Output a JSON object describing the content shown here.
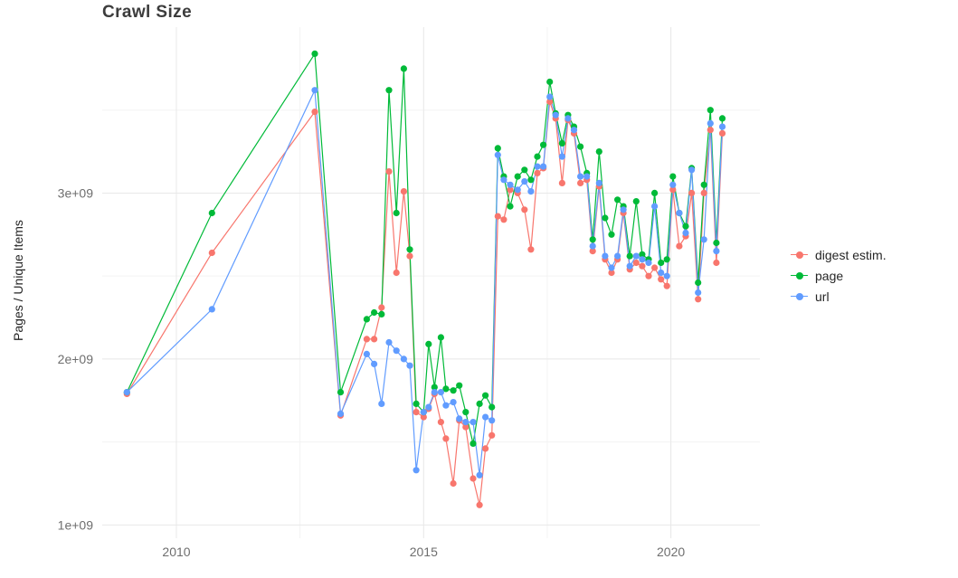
{
  "chart_data": {
    "type": "line",
    "title": "Crawl Size",
    "xlabel": "",
    "ylabel": "Pages / Unique Items",
    "unit": "values in billions (1e9) of pages / unique items",
    "x_range": [
      2008.5,
      2021.8
    ],
    "y_range": [
      0.92,
      4.0
    ],
    "grid": true,
    "legend_position": "right",
    "x_ticks": [
      {
        "value": 2010,
        "label": "2010"
      },
      {
        "value": 2015,
        "label": "2015"
      },
      {
        "value": 2020,
        "label": "2020"
      }
    ],
    "y_ticks": [
      {
        "value": 1,
        "label": "1e+09"
      },
      {
        "value": 2,
        "label": "2e+09"
      },
      {
        "value": 3,
        "label": "3e+09"
      }
    ],
    "x_minor_ticks": [
      2012.5,
      2017.5
    ],
    "y_minor_ticks": [
      1.5,
      2.5,
      3.5
    ],
    "x": [
      2009.0,
      2010.72,
      2012.8,
      2013.32,
      2013.85,
      2014.0,
      2014.15,
      2014.3,
      2014.45,
      2014.6,
      2014.72,
      2014.85,
      2015.0,
      2015.1,
      2015.22,
      2015.35,
      2015.45,
      2015.6,
      2015.72,
      2015.85,
      2016.0,
      2016.13,
      2016.25,
      2016.38,
      2016.5,
      2016.62,
      2016.75,
      2016.9,
      2017.04,
      2017.17,
      2017.3,
      2017.42,
      2017.55,
      2017.67,
      2017.8,
      2017.92,
      2018.04,
      2018.17,
      2018.3,
      2018.42,
      2018.55,
      2018.67,
      2018.8,
      2018.92,
      2019.04,
      2019.17,
      2019.3,
      2019.42,
      2019.55,
      2019.67,
      2019.8,
      2019.92,
      2020.04,
      2020.17,
      2020.3,
      2020.42,
      2020.55,
      2020.67,
      2020.8,
      2020.92,
      2021.04
    ],
    "series": [
      {
        "name": "digest estim.",
        "color": "#F8766D",
        "values": [
          1.79,
          2.64,
          3.49,
          1.66,
          2.12,
          2.12,
          2.31,
          3.13,
          2.52,
          3.01,
          2.62,
          1.68,
          1.65,
          1.7,
          1.79,
          1.62,
          1.52,
          1.25,
          1.63,
          1.59,
          1.28,
          1.12,
          1.46,
          1.54,
          2.86,
          2.84,
          3.02,
          3.0,
          2.9,
          2.66,
          3.12,
          3.15,
          3.55,
          3.45,
          3.06,
          3.44,
          3.36,
          3.06,
          3.08,
          2.65,
          3.04,
          2.6,
          2.52,
          2.6,
          2.88,
          2.54,
          2.58,
          2.56,
          2.5,
          2.55,
          2.48,
          2.44,
          3.02,
          2.68,
          2.74,
          3.0,
          2.36,
          3.0,
          3.38,
          2.58,
          3.36
        ]
      },
      {
        "name": "page",
        "color": "#00BA38",
        "values": [
          1.8,
          2.88,
          3.84,
          1.8,
          2.24,
          2.28,
          2.27,
          3.62,
          2.88,
          3.75,
          2.66,
          1.73,
          1.68,
          2.09,
          1.83,
          2.13,
          1.82,
          1.81,
          1.84,
          1.68,
          1.49,
          1.73,
          1.78,
          1.71,
          3.27,
          3.1,
          2.92,
          3.1,
          3.14,
          3.08,
          3.22,
          3.29,
          3.67,
          3.48,
          3.3,
          3.47,
          3.4,
          3.28,
          3.12,
          2.72,
          3.25,
          2.85,
          2.75,
          2.96,
          2.92,
          2.62,
          2.95,
          2.63,
          2.6,
          3.0,
          2.58,
          2.6,
          3.1,
          2.88,
          2.8,
          3.15,
          2.46,
          3.05,
          3.5,
          2.7,
          3.45
        ]
      },
      {
        "name": "url",
        "color": "#619CFF",
        "values": [
          1.8,
          2.3,
          3.62,
          1.67,
          2.03,
          1.97,
          1.73,
          2.1,
          2.05,
          2.0,
          1.96,
          1.33,
          1.68,
          1.71,
          1.8,
          1.8,
          1.72,
          1.74,
          1.64,
          1.62,
          1.62,
          1.3,
          1.65,
          1.63,
          3.23,
          3.08,
          3.05,
          3.02,
          3.07,
          3.01,
          3.16,
          3.16,
          3.58,
          3.47,
          3.22,
          3.45,
          3.38,
          3.1,
          3.1,
          2.68,
          3.06,
          2.62,
          2.55,
          2.62,
          2.9,
          2.56,
          2.62,
          2.6,
          2.58,
          2.92,
          2.52,
          2.5,
          3.05,
          2.88,
          2.76,
          3.14,
          2.4,
          2.72,
          3.42,
          2.65,
          3.4
        ]
      }
    ]
  },
  "style": {
    "grid_major_color": "#e8e8e8",
    "grid_minor_color": "#f3f3f3",
    "tick_label_color": "#6e6e6e",
    "title_color": "#3c3c3c",
    "background": "#ffffff"
  }
}
